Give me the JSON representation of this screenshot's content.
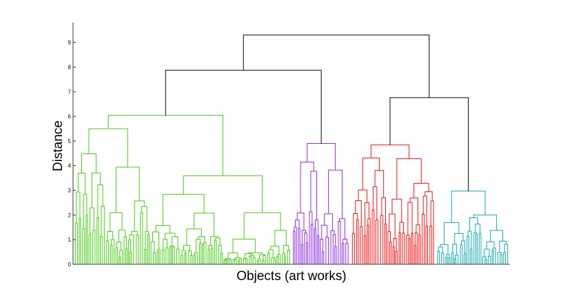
{
  "chart_data": {
    "type": "dendrogram",
    "title": "",
    "xlabel": "Objects (art works)",
    "ylabel": "Distance",
    "ylim": [
      0,
      9.8
    ],
    "y_ticks": [
      "0",
      "1",
      "2",
      "3",
      "4",
      "5",
      "6",
      "7",
      "8",
      "9"
    ],
    "y_tick_values": [
      0,
      1,
      2,
      3,
      4,
      5,
      6,
      7,
      8,
      9
    ],
    "grid": false,
    "link_color_above_threshold": "#000000",
    "clusters": [
      {
        "color": "#44cc11",
        "leaf_range": [
          0,
          0.5
        ],
        "merge_height": 6.04,
        "sub_merges": [
          4.89,
          4.47,
          4.28,
          4.06,
          3.98,
          3.73,
          3.6,
          3.32
        ]
      },
      {
        "color": "#8a2be2",
        "leaf_range": [
          0.5,
          0.635
        ],
        "merge_height": 4.9,
        "sub_merges": [
          4.28,
          3.78,
          3.45
        ]
      },
      {
        "color": "#ee1111",
        "leaf_range": [
          0.635,
          0.83
        ],
        "merge_height": 4.84,
        "sub_merges": [
          3.63,
          3.47,
          3.29,
          3.05
        ]
      },
      {
        "color": "#11aaaa",
        "leaf_range": [
          0.83,
          1.0
        ],
        "merge_height": 2.97,
        "sub_merges": [
          1.75,
          1.05,
          1.0
        ]
      }
    ],
    "top_links": [
      {
        "from": [
          "green",
          "purple"
        ],
        "height": 7.87
      },
      {
        "from": [
          "red",
          "cyan"
        ],
        "height": 6.76
      },
      {
        "from": [
          "green+purple",
          "red+cyan"
        ],
        "height": 9.3
      }
    ]
  }
}
